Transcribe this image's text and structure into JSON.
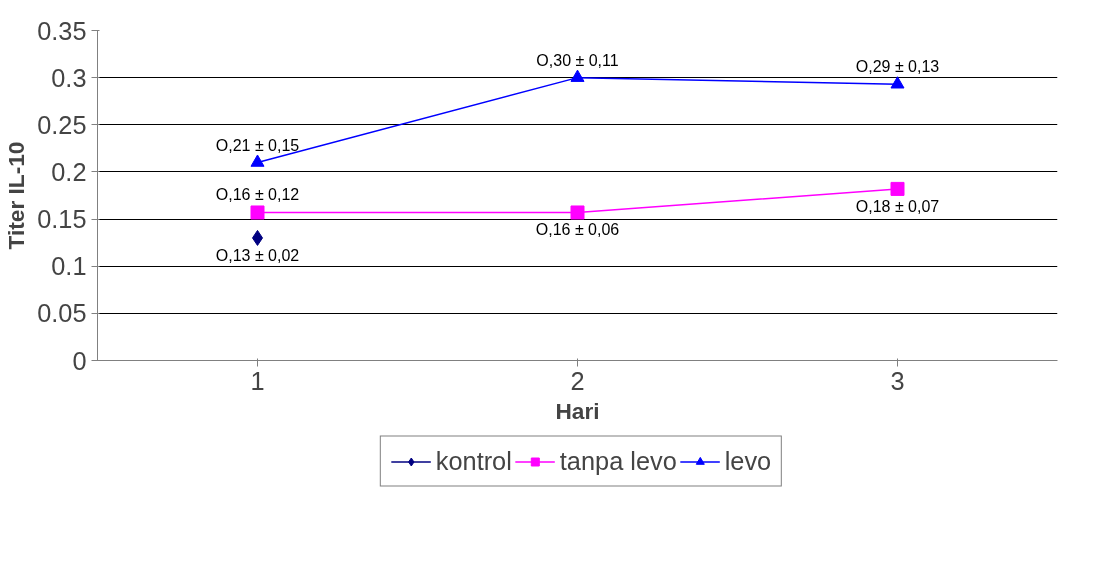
{
  "chart_data": {
    "type": "line",
    "xlabel": "Hari",
    "ylabel": "Titer IL-10",
    "categories": [
      "1",
      "2",
      "3"
    ],
    "series": [
      {
        "name": "kontrol",
        "color": "#000080",
        "marker": "diamond",
        "values": [
          0.13,
          null,
          null
        ]
      },
      {
        "name": "tanpa levo",
        "color": "#ff00ff",
        "marker": "square",
        "values": [
          0.157,
          0.157,
          0.182
        ]
      },
      {
        "name": "levo",
        "color": "#0000ff",
        "marker": "triangle",
        "values": [
          0.21,
          0.3,
          0.293
        ]
      }
    ],
    "ylim": [
      0,
      0.35
    ],
    "yticks": [
      0,
      0.05,
      0.1,
      0.15,
      0.2,
      0.25,
      0.3,
      0.35
    ],
    "grid": "y",
    "legend": "bottom",
    "line_style": "solid",
    "annotations": [
      {
        "text": "O,13 ± 0,02",
        "x": "1",
        "y": 0.13
      },
      {
        "text": "O,16 ± 0,12",
        "x": "1",
        "y": 0.157
      },
      {
        "text": "O,16 ± 0,06",
        "x": "2",
        "y": 0.157
      },
      {
        "text": "O,18 ± 0,07",
        "x": "3",
        "y": 0.182
      },
      {
        "text": "O,21 ± 0,15",
        "x": "1",
        "y": 0.21
      },
      {
        "text": "O,30 ± 0,11",
        "x": "2",
        "y": 0.3
      },
      {
        "text": "O,29 ± 0,13",
        "x": "3",
        "y": 0.293
      }
    ]
  }
}
